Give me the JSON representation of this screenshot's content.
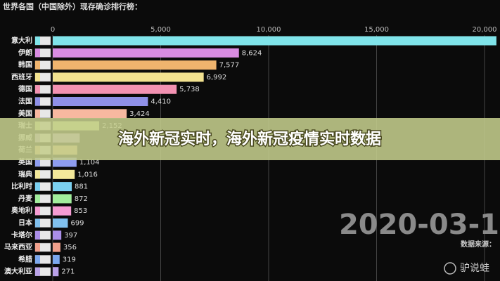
{
  "chart_data": {
    "type": "bar",
    "orientation": "horizontal",
    "title": "世界各国（中国除外）现存确诊排行榜：",
    "categories": [
      "意大利",
      "伊朗",
      "韩国",
      "西班牙",
      "德国",
      "法国",
      "美国",
      "瑞士",
      "挪威",
      "荷兰",
      "英国",
      "瑞典",
      "比利时",
      "丹麦",
      "奥地利",
      "日本",
      "卡塔尔",
      "马来西亚",
      "希腊",
      "澳大利亚"
    ],
    "values": [
      20550,
      8624,
      7577,
      6992,
      5738,
      4410,
      3424,
      2152,
      1250,
      1135,
      1104,
      1016,
      881,
      872,
      853,
      699,
      397,
      356,
      319,
      271
    ],
    "value_labels": [
      null,
      "8,624",
      "7,577",
      "6,992",
      "5,738",
      "4,410",
      "3,424",
      "2,152",
      null,
      null,
      "1,104",
      "1,016",
      "881",
      "872",
      "853",
      "699",
      "397",
      "356",
      "319",
      "271"
    ],
    "colors": [
      "#80e4ea",
      "#d98ce2",
      "#efb46e",
      "#f2e290",
      "#f392b2",
      "#8f90e8",
      "#f7b8a0",
      "#d6e98e",
      "#c7a3e4",
      "#f0c080",
      "#8e9df0",
      "#f3e89a",
      "#7bd0f0",
      "#a2ee9c",
      "#f59cd3",
      "#80c0ee",
      "#aa8ee8",
      "#f0a08c",
      "#7ca8ee",
      "#baa2e8"
    ],
    "xlim": [
      0,
      20000
    ],
    "xticks": [
      0,
      {
        "value": 5000,
        "label": "5,000"
      },
      {
        "value": 10000,
        "label": "10,000"
      },
      {
        "value": 15000,
        "label": "15,000"
      },
      {
        "value": 20000,
        "label": "20,000"
      }
    ],
    "grid": true,
    "date_label": "2020-03-1",
    "source_label": "数据来源："
  },
  "overlay": {
    "banner": "海外新冠实时，海外新冠疫情实时数据",
    "watermark": "驴说蛙"
  }
}
